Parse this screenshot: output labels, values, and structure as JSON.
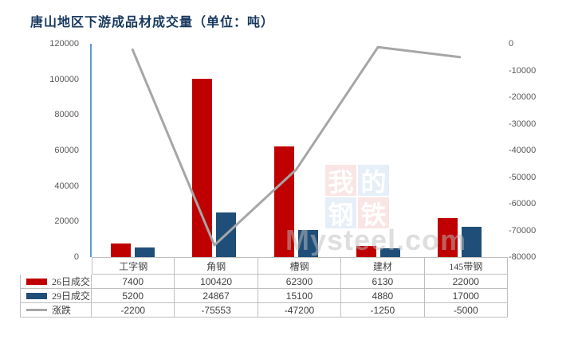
{
  "title": "唐山地区下游成品材成交量（单位：吨）",
  "colors": {
    "title_text": "#17375E",
    "bar26": "#C00000",
    "bar29": "#1F4E79",
    "line": "#A6A6A6",
    "axis_line": "#5B9BD5",
    "tick_text": "#595959",
    "table_border": "#BFBFBF",
    "table_text": "#404040",
    "watermark_pink": "#F4CDCB",
    "watermark_blue": "#CFE0F1",
    "watermark_text": "#BEBEBE"
  },
  "chart_data": {
    "type": "bar",
    "subtype": "bar+line combo, secondary axis for line",
    "categories": [
      "工字钢",
      "角钢",
      "槽钢",
      "建材",
      "145带钢"
    ],
    "series": [
      {
        "name": "26日成交",
        "key": "day26",
        "type": "bar",
        "color_key": "bar26",
        "values": [
          7400,
          100420,
          62300,
          6130,
          22000
        ]
      },
      {
        "name": "29日成交",
        "key": "day29",
        "type": "bar",
        "color_key": "bar29",
        "values": [
          5200,
          24867,
          15100,
          4880,
          17000
        ]
      },
      {
        "name": "涨跌",
        "key": "change",
        "type": "line",
        "color_key": "line",
        "values": [
          -2200,
          -75553,
          -47200,
          -1250,
          -5000
        ]
      }
    ],
    "title": "唐山地区下游成品材成交量（单位：吨）",
    "xlabel": "",
    "ylabel": "",
    "left_axis": {
      "min": 0,
      "max": 120000,
      "ticks": [
        "120000",
        "100000",
        "80000",
        "60000",
        "40000",
        "20000",
        "0"
      ]
    },
    "right_axis": {
      "min": -80000,
      "max": 0,
      "ticks": [
        "0",
        "-10000",
        "-20000",
        "-30000",
        "-40000",
        "-50000",
        "-60000",
        "-70000",
        "-80000"
      ]
    },
    "grid": false,
    "legend_position": "data-table-left-column"
  },
  "watermark": {
    "chars": [
      "我",
      "的",
      "钢",
      "铁"
    ],
    "text": "Mysteel.com"
  }
}
